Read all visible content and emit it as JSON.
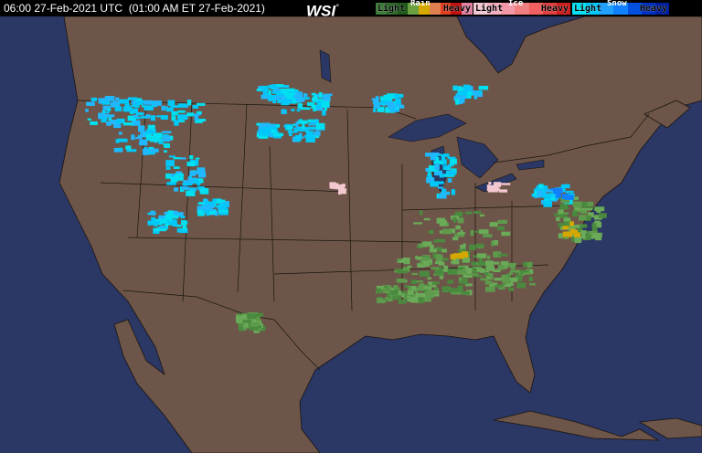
{
  "header": {
    "timestamp": "06:00 27-Feb-2021 UTC  (01:00 AM ET 27-Feb-2021)",
    "logo": "WSI",
    "logo_mark": "°"
  },
  "legend": [
    {
      "title": "Rain",
      "light": "Light",
      "heavy": "Heavy",
      "colors": [
        "#3f7a3a",
        "#2f6a2a",
        "#1f5a1a",
        "#6aa040",
        "#d4a800",
        "#e08050",
        "#e04020",
        "#c01010",
        "#e080a0"
      ]
    },
    {
      "title": "Ice",
      "light": "Light",
      "heavy": "Heavy",
      "colors": [
        "#f4c8d0",
        "#f4b0c0",
        "#f498a8",
        "#f08080",
        "#f06060",
        "#e04040",
        "#d02020"
      ]
    },
    {
      "title": "Snow",
      "light": "Light",
      "heavy": "Heavy",
      "colors": [
        "#00e0f0",
        "#00c8f8",
        "#20a0ff",
        "#1080ff",
        "#0050e0",
        "#0030c0",
        "#0020a0"
      ]
    }
  ],
  "map": {
    "ocean_color": "#2b3764",
    "land_color": "#6d5649",
    "border_color": "#1a1410",
    "lake_color": "#2b3764"
  }
}
